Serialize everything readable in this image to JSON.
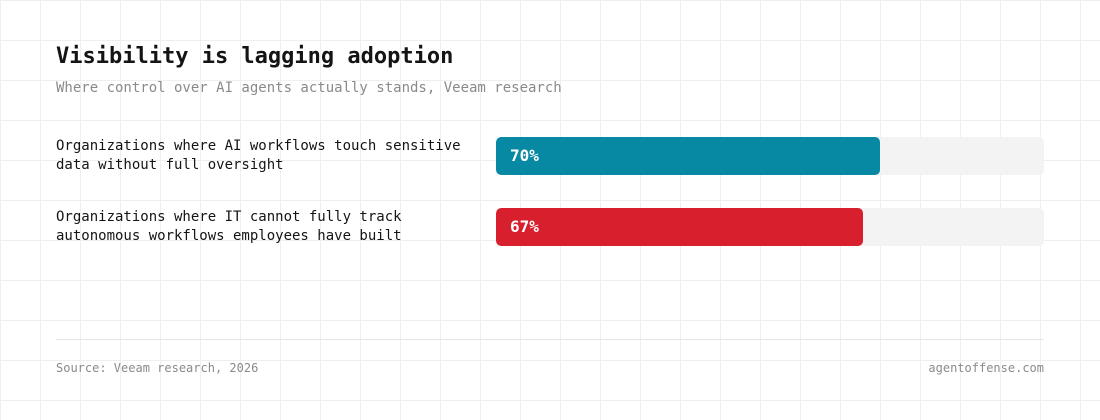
{
  "chart_data": {
    "type": "bar",
    "orientation": "horizontal",
    "title": "Visibility is lagging adoption",
    "subtitle": "Where control over AI agents actually stands, Veeam research",
    "categories": [
      [
        "Organizations where AI workflows touch sensitive",
        "data without full oversight"
      ],
      [
        "Organizations where IT cannot fully track",
        "autonomous workflows employees have built"
      ]
    ],
    "values": [
      70,
      67
    ],
    "value_labels": [
      "70%",
      "67%"
    ],
    "colors": [
      "#0788a3",
      "#d81f2d"
    ],
    "track_color": "#f3f3f3",
    "xlim": [
      0,
      100
    ],
    "grid": false
  },
  "footer": {
    "source": "Source: Veeam research, 2026",
    "site": "agentoffense.com"
  }
}
